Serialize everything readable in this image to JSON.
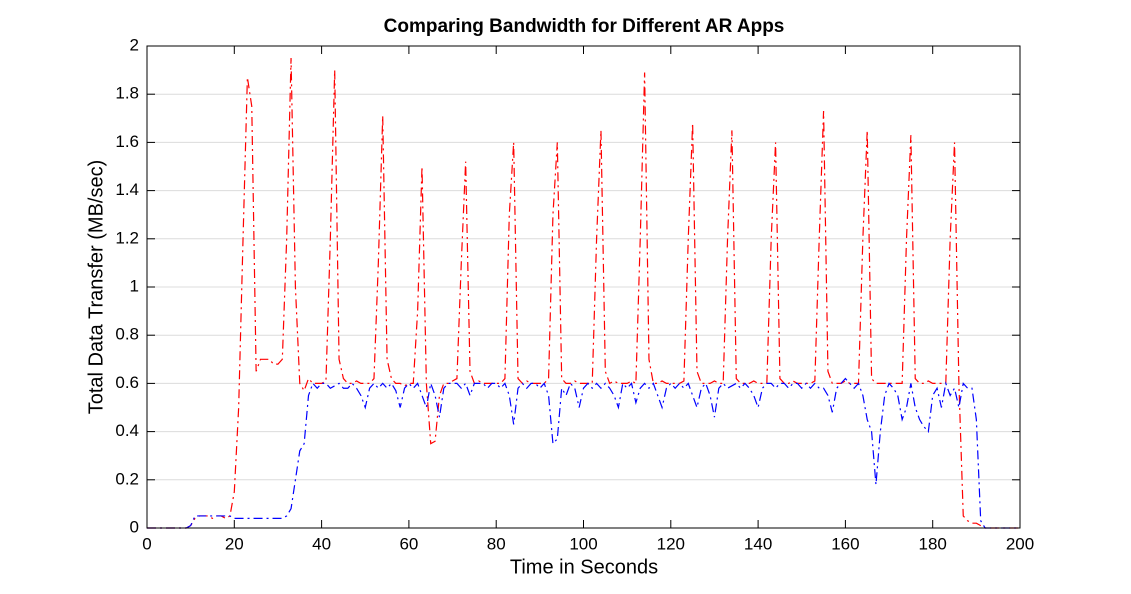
{
  "chart_data": {
    "type": "line",
    "title": "Comparing Bandwidth for Different AR Apps",
    "xlabel": "Time in Seconds",
    "ylabel": "Total Data Transfer (MB/sec)",
    "xlim": [
      0,
      200
    ],
    "xticks": [
      0,
      20,
      40,
      60,
      80,
      100,
      120,
      140,
      160,
      180,
      200
    ],
    "ylim": [
      0,
      2
    ],
    "yticks": [
      0,
      0.2,
      0.4,
      0.6,
      0.8,
      1,
      1.2,
      1.4,
      1.6,
      1.8,
      2
    ],
    "grid": true,
    "linestyle": "dash-dot",
    "x": [
      0,
      1,
      2,
      3,
      4,
      5,
      6,
      7,
      8,
      9,
      10,
      11,
      12,
      13,
      14,
      15,
      16,
      17,
      18,
      19,
      20,
      21,
      22,
      23,
      24,
      25,
      26,
      27,
      28,
      29,
      30,
      31,
      32,
      33,
      34,
      35,
      36,
      37,
      38,
      39,
      40,
      41,
      42,
      43,
      44,
      45,
      46,
      47,
      48,
      49,
      50,
      51,
      52,
      53,
      54,
      55,
      56,
      57,
      58,
      59,
      60,
      61,
      62,
      63,
      64,
      65,
      66,
      67,
      68,
      69,
      70,
      71,
      72,
      73,
      74,
      75,
      76,
      77,
      78,
      79,
      80,
      81,
      82,
      83,
      84,
      85,
      86,
      87,
      88,
      89,
      90,
      91,
      92,
      93,
      94,
      95,
      96,
      97,
      98,
      99,
      100,
      101,
      102,
      103,
      104,
      105,
      106,
      107,
      108,
      109,
      110,
      111,
      112,
      113,
      114,
      115,
      116,
      117,
      118,
      119,
      120,
      121,
      122,
      123,
      124,
      125,
      126,
      127,
      128,
      129,
      130,
      131,
      132,
      133,
      134,
      135,
      136,
      137,
      138,
      139,
      140,
      141,
      142,
      143,
      144,
      145,
      146,
      147,
      148,
      149,
      150,
      151,
      152,
      153,
      154,
      155,
      156,
      157,
      158,
      159,
      160,
      161,
      162,
      163,
      164,
      165,
      166,
      167,
      168,
      169,
      170,
      171,
      172,
      173,
      174,
      175,
      176,
      177,
      178,
      179,
      180,
      181,
      182,
      183,
      184,
      185,
      186,
      187,
      188,
      189,
      190,
      191,
      192,
      193,
      194,
      195,
      196,
      197,
      198,
      199,
      200
    ],
    "series": [
      {
        "color": "#ff0000",
        "values": [
          0,
          0,
          0,
          0,
          0,
          0,
          0,
          0,
          0,
          0,
          0.01,
          0.04,
          0.05,
          0.05,
          0.05,
          0.04,
          0.05,
          0.05,
          0.04,
          0.05,
          0.15,
          0.5,
          1.2,
          1.87,
          1.75,
          0.65,
          0.7,
          0.7,
          0.7,
          0.68,
          0.68,
          0.7,
          1.2,
          1.95,
          1.0,
          0.6,
          0.57,
          0.62,
          0.6,
          0.6,
          0.6,
          0.61,
          1.2,
          1.9,
          0.7,
          0.62,
          0.6,
          0.6,
          0.61,
          0.6,
          0.6,
          0.6,
          0.62,
          1.1,
          1.71,
          0.7,
          0.62,
          0.6,
          0.6,
          0.59,
          0.6,
          0.6,
          0.9,
          1.5,
          0.6,
          0.35,
          0.36,
          0.55,
          0.6,
          0.6,
          0.61,
          0.62,
          1.1,
          1.52,
          0.65,
          0.6,
          0.61,
          0.6,
          0.6,
          0.6,
          0.6,
          0.6,
          0.62,
          1.3,
          1.6,
          0.62,
          0.6,
          0.61,
          0.6,
          0.6,
          0.6,
          0.6,
          0.62,
          1.3,
          1.6,
          0.62,
          0.6,
          0.6,
          0.61,
          0.6,
          0.6,
          0.6,
          0.6,
          1.2,
          1.65,
          0.65,
          0.6,
          0.61,
          0.6,
          0.6,
          0.6,
          0.61,
          0.6,
          1.2,
          1.89,
          0.7,
          0.6,
          0.6,
          0.61,
          0.6,
          0.6,
          0.6,
          0.6,
          0.61,
          1.2,
          1.68,
          0.65,
          0.6,
          0.6,
          0.6,
          0.61,
          0.6,
          0.6,
          1.2,
          1.65,
          0.62,
          0.6,
          0.6,
          0.6,
          0.61,
          0.6,
          0.6,
          0.6,
          1.2,
          1.6,
          0.62,
          0.6,
          0.6,
          0.61,
          0.6,
          0.6,
          0.6,
          0.6,
          0.61,
          1.2,
          1.73,
          0.65,
          0.6,
          0.6,
          0.6,
          0.61,
          0.6,
          0.6,
          0.6,
          1.2,
          1.65,
          0.62,
          0.6,
          0.6,
          0.6,
          0.6,
          0.6,
          0.6,
          0.6,
          1.2,
          1.63,
          0.62,
          0.6,
          0.6,
          0.61,
          0.6,
          0.6,
          0.6,
          0.6,
          1.2,
          1.6,
          0.6,
          0.05,
          0.03,
          0.02,
          0.02,
          0.01,
          0,
          0,
          0,
          0,
          0,
          0,
          0,
          0,
          0
        ]
      },
      {
        "color": "#0000ff",
        "values": [
          0,
          0,
          0,
          0,
          0,
          0,
          0,
          0,
          0,
          0,
          0.01,
          0.05,
          0.05,
          0.05,
          0.05,
          0.05,
          0.05,
          0.05,
          0.05,
          0.05,
          0.04,
          0.04,
          0.04,
          0.04,
          0.04,
          0.04,
          0.04,
          0.04,
          0.04,
          0.04,
          0.04,
          0.04,
          0.05,
          0.08,
          0.2,
          0.32,
          0.35,
          0.55,
          0.6,
          0.58,
          0.6,
          0.6,
          0.58,
          0.59,
          0.6,
          0.58,
          0.58,
          0.6,
          0.58,
          0.55,
          0.5,
          0.58,
          0.6,
          0.58,
          0.6,
          0.58,
          0.6,
          0.57,
          0.5,
          0.58,
          0.6,
          0.58,
          0.6,
          0.55,
          0.5,
          0.6,
          0.55,
          0.46,
          0.58,
          0.6,
          0.6,
          0.6,
          0.58,
          0.6,
          0.55,
          0.6,
          0.6,
          0.6,
          0.58,
          0.6,
          0.6,
          0.58,
          0.6,
          0.55,
          0.43,
          0.58,
          0.6,
          0.58,
          0.6,
          0.6,
          0.58,
          0.6,
          0.55,
          0.35,
          0.37,
          0.58,
          0.55,
          0.6,
          0.58,
          0.5,
          0.58,
          0.6,
          0.58,
          0.6,
          0.58,
          0.6,
          0.58,
          0.55,
          0.5,
          0.6,
          0.58,
          0.6,
          0.52,
          0.58,
          0.6,
          0.58,
          0.6,
          0.55,
          0.5,
          0.58,
          0.6,
          0.58,
          0.6,
          0.58,
          0.6,
          0.55,
          0.5,
          0.58,
          0.6,
          0.55,
          0.46,
          0.58,
          0.6,
          0.58,
          0.59,
          0.6,
          0.58,
          0.6,
          0.58,
          0.55,
          0.5,
          0.58,
          0.6,
          0.6,
          0.58,
          0.6,
          0.6,
          0.58,
          0.6,
          0.6,
          0.58,
          0.6,
          0.58,
          0.6,
          0.58,
          0.58,
          0.55,
          0.48,
          0.58,
          0.6,
          0.62,
          0.6,
          0.58,
          0.6,
          0.55,
          0.45,
          0.4,
          0.18,
          0.4,
          0.55,
          0.6,
          0.58,
          0.55,
          0.45,
          0.5,
          0.6,
          0.5,
          0.45,
          0.42,
          0.4,
          0.55,
          0.58,
          0.5,
          0.6,
          0.55,
          0.58,
          0.5,
          0.6,
          0.58,
          0.58,
          0.45,
          0.03,
          0,
          0,
          0,
          0,
          0,
          0,
          0,
          0,
          0
        ]
      }
    ]
  }
}
